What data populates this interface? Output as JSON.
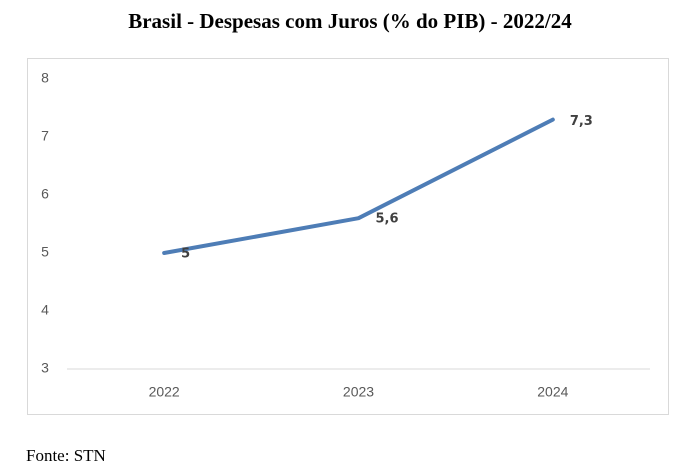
{
  "chart_data": {
    "type": "line",
    "title": "Brasil - Despesas com Juros (% do PIB) - 2022/24",
    "categories": [
      "2022",
      "2023",
      "2024"
    ],
    "series": [
      {
        "name": "Despesas com Juros",
        "color": "#4e7db6",
        "values": [
          5,
          5.6,
          7.3
        ],
        "value_labels": [
          "5",
          "5,6",
          "7,3"
        ]
      }
    ],
    "ylim": [
      3,
      8
    ],
    "yticks": [
      3,
      4,
      5,
      6,
      7,
      8
    ],
    "grid": false,
    "source": "Fonte: STN"
  }
}
